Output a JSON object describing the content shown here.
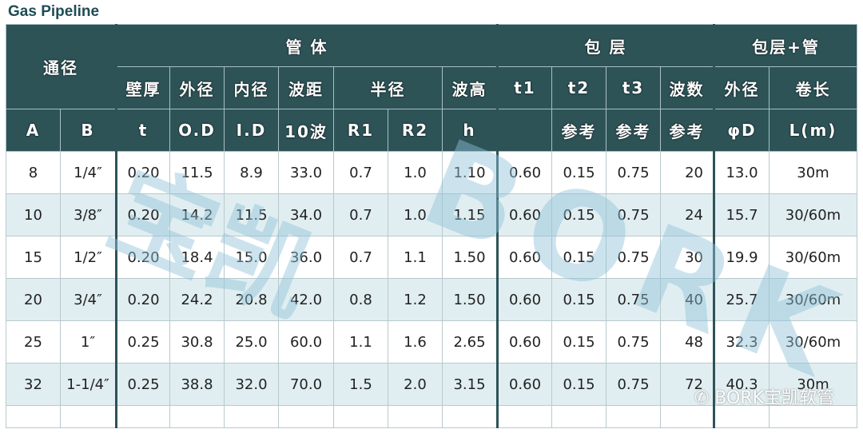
{
  "title": "Gas Pipeline",
  "header": {
    "tongjing": "通径",
    "guanti": "管 体",
    "baoceng": "包 层",
    "baoceng_guan": "包层+管",
    "row2": [
      "壁厚",
      "外径",
      "内径",
      "波距",
      "半径",
      "波高",
      "t1",
      "t2",
      "t3",
      "波数",
      "外径",
      "卷长"
    ],
    "row3": [
      "A",
      "B",
      "t",
      "O.D",
      "I.D",
      "10波",
      "R1",
      "R2",
      "h",
      "",
      "参考",
      "参考",
      "参考",
      "φD",
      "L(m)"
    ]
  },
  "rows": [
    [
      "8",
      "1/4″",
      "0.20",
      "11.5",
      "8.9",
      "33.0",
      "0.7",
      "1.0",
      "1.10",
      "0.60",
      "0.15",
      "0.75",
      "20",
      "13.0",
      "30m"
    ],
    [
      "10",
      "3/8″",
      "0.20",
      "14.2",
      "11.5",
      "34.0",
      "0.7",
      "1.0",
      "1.15",
      "0.60",
      "0.15",
      "0.75",
      "24",
      "15.7",
      "30/60m"
    ],
    [
      "15",
      "1/2″",
      "0.20",
      "18.4",
      "15.0",
      "36.0",
      "0.7",
      "1.1",
      "1.50",
      "0.60",
      "0.15",
      "0.75",
      "30",
      "19.9",
      "30/60m"
    ],
    [
      "20",
      "3/4″",
      "0.20",
      "24.2",
      "20.8",
      "42.0",
      "0.8",
      "1.2",
      "1.50",
      "0.60",
      "0.15",
      "0.75",
      "40",
      "25.7",
      "30/60m"
    ],
    [
      "25",
      "1″",
      "0.25",
      "30.8",
      "25.0",
      "60.0",
      "1.1",
      "1.6",
      "2.65",
      "0.60",
      "0.15",
      "0.75",
      "48",
      "32.3",
      "30/60m"
    ],
    [
      "32",
      "1-1/4″",
      "0.25",
      "38.8",
      "32.0",
      "70.0",
      "1.5",
      "2.0",
      "3.15",
      "0.60",
      "0.15",
      "0.75",
      "72",
      "40.3",
      "30m"
    ]
  ],
  "watermark": {
    "logo_text": "宝凯",
    "brand": "BORK",
    "wechat": "BORK宝凯软管"
  },
  "colors": {
    "header_bg": "#2d5357",
    "alt_row": "#e1eef1",
    "watermark": "#8fc3da"
  }
}
